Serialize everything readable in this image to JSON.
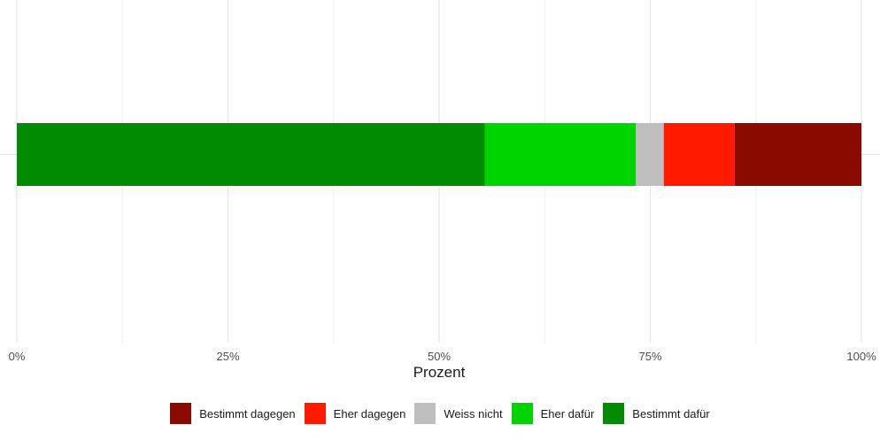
{
  "chart_data": {
    "type": "bar",
    "orientation": "horizontal",
    "stacked": true,
    "xlabel": "Prozent",
    "xlim": [
      0,
      100
    ],
    "xticks": [
      0,
      25,
      50,
      75,
      100
    ],
    "xtick_labels": [
      "0%",
      "25%",
      "50%",
      "75%",
      "100%"
    ],
    "grid": true,
    "legend_position": "bottom",
    "series": [
      {
        "name": "Bestimmt dafür",
        "value": 55.4,
        "color": "#008B00"
      },
      {
        "name": "Eher dafür",
        "value": 17.9,
        "color": "#00D400"
      },
      {
        "name": "Weiss nicht",
        "value": 3.3,
        "color": "#BEBEBE"
      },
      {
        "name": "Eher dagegen",
        "value": 8.4,
        "color": "#FF1A00"
      },
      {
        "name": "Bestimmt dagegen",
        "value": 15.0,
        "color": "#8B0A00"
      }
    ],
    "legend_order": [
      "Bestimmt dagegen",
      "Eher dagegen",
      "Weiss nicht",
      "Eher dafür",
      "Bestimmt dafür"
    ]
  }
}
